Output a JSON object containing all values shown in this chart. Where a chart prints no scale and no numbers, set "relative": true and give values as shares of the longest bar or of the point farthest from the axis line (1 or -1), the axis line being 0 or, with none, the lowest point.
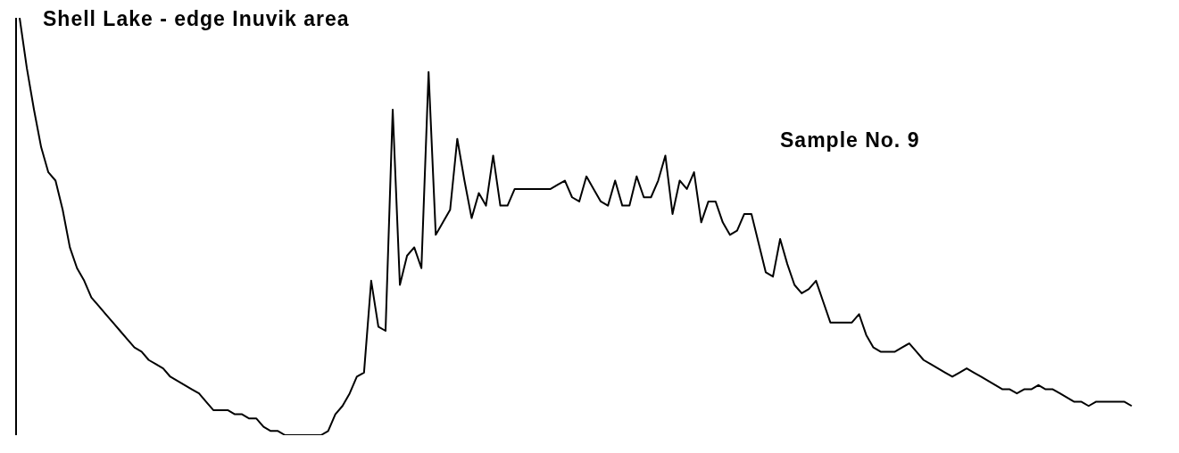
{
  "chart_data": {
    "type": "line",
    "title": "Shell Lake - edge Inuvik area",
    "annotations": [
      "Sample No. 9"
    ],
    "relative": true,
    "grid": false,
    "legend": false,
    "marker": "none",
    "line_style": "solid",
    "categories": [
      null,
      null,
      null,
      null,
      null,
      null,
      null,
      null,
      null,
      null,
      null,
      null,
      null,
      null,
      null,
      null,
      null,
      null,
      null,
      null,
      null,
      null,
      null,
      null,
      null,
      null,
      null,
      null,
      null,
      null,
      null,
      null,
      null,
      null,
      null,
      null,
      null,
      null,
      null,
      null,
      null,
      null,
      null,
      null,
      null,
      null,
      null,
      null,
      null,
      null,
      null,
      null,
      null,
      null,
      null,
      null,
      null,
      null,
      null,
      null,
      null,
      null,
      null,
      null,
      null,
      null,
      null,
      null,
      null,
      null,
      null,
      null,
      null,
      null,
      null,
      null,
      null,
      null,
      null,
      null,
      null,
      null,
      null,
      null,
      null,
      null,
      null,
      null,
      null,
      null,
      null,
      null,
      null,
      null,
      null,
      null,
      null,
      null,
      null,
      null,
      null,
      null,
      null,
      null,
      null,
      null,
      null,
      null,
      null,
      null,
      null,
      null,
      null,
      null,
      null,
      null,
      null,
      null,
      null,
      null,
      null,
      null,
      null,
      null,
      null,
      null,
      null,
      null,
      null,
      null,
      null,
      null,
      null,
      null,
      null,
      null,
      null,
      null,
      null,
      null,
      null,
      null,
      null,
      null,
      null,
      null,
      null,
      null,
      null,
      null,
      null,
      null,
      null,
      null,
      null,
      null
    ],
    "series": [
      {
        "color": "#000000",
        "values": [
          1,
          0.88,
          0.78,
          0.69,
          0.63,
          0.61,
          0.54,
          0.45,
          0.4,
          0.37,
          0.33,
          0.31,
          0.29,
          0.27,
          0.25,
          0.23,
          0.21,
          0.2,
          0.18,
          0.17,
          0.16,
          0.14,
          0.13,
          0.12,
          0.11,
          0.1,
          0.08,
          0.06,
          0.06,
          0.06,
          0.05,
          0.05,
          0.04,
          0.04,
          0.02,
          0.01,
          0.01,
          0.0,
          0,
          0,
          0.0,
          0,
          0.0,
          0.01,
          0.05,
          0.07,
          0.1,
          0.14,
          0.15,
          0.37,
          0.26,
          0.25,
          0.78,
          0.36,
          0.43,
          0.45,
          0.4,
          0.87,
          0.48,
          0.51,
          0.54,
          0.71,
          0.61,
          0.52,
          0.58,
          0.55,
          0.67,
          0.55,
          0.55,
          0.59,
          0.59,
          0.59,
          0.59,
          0.59,
          0.59,
          0.6,
          0.61,
          0.57,
          0.56,
          0.62,
          0.59,
          0.56,
          0.55,
          0.61,
          0.55,
          0.55,
          0.62,
          0.57,
          0.57,
          0.61,
          0.67,
          0.53,
          0.61,
          0.59,
          0.63,
          0.51,
          0.56,
          0.56,
          0.51,
          0.48,
          0.49,
          0.53,
          0.53,
          0.46,
          0.39,
          0.38,
          0.47,
          0.41,
          0.36,
          0.34,
          0.35,
          0.37,
          0.32,
          0.27,
          0.27,
          0.27,
          0.27,
          0.29,
          0.24,
          0.21,
          0.2,
          0.2,
          0.2,
          0.21,
          0.22,
          0.2,
          0.18,
          0.17,
          0.16,
          0.15,
          0.14,
          0.15,
          0.16,
          0.15,
          0.14,
          0.13,
          0.12,
          0.11,
          0.11,
          0.1,
          0.11,
          0.11,
          0.12,
          0.11,
          0.11,
          0.1,
          0.09,
          0.08,
          0.08,
          0.07,
          0.08,
          0.08,
          0.08,
          0.08,
          0.08,
          0.07
        ]
      }
    ]
  }
}
